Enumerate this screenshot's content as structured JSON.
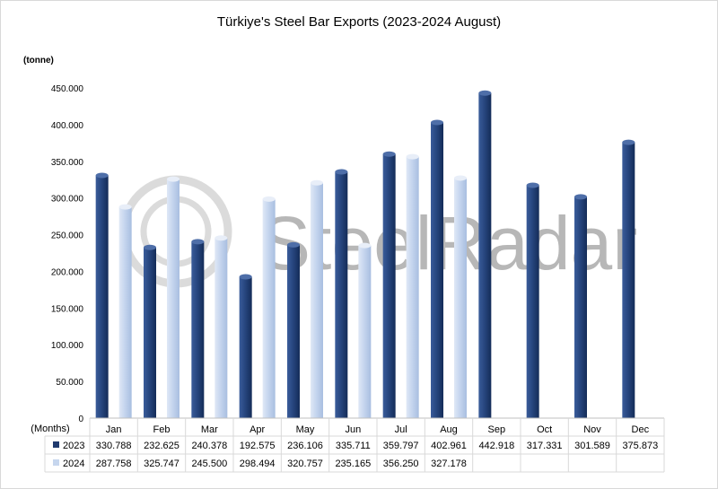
{
  "chart_data": {
    "type": "bar",
    "title": "Türkiye's Steel Bar Exports (2023-2024 August)",
    "ylabel": "(tonne)",
    "xlabel": "(Months)",
    "categories": [
      "Jan",
      "Feb",
      "Mar",
      "Apr",
      "May",
      "Jun",
      "Jul",
      "Aug",
      "Sep",
      "Oct",
      "Nov",
      "Dec"
    ],
    "ylim": [
      0,
      450000
    ],
    "yticks": [
      0,
      50000,
      100000,
      150000,
      200000,
      250000,
      300000,
      350000,
      400000,
      450000
    ],
    "ytick_labels": [
      "0",
      "50.000",
      "100.000",
      "150.000",
      "200.000",
      "250.000",
      "300.000",
      "350.000",
      "400.000",
      "450.000"
    ],
    "grid": false,
    "legend": "data-table",
    "series": [
      {
        "name": "2023",
        "color": "#1f3a6e",
        "values": [
          330788,
          232625,
          240378,
          192575,
          236106,
          335711,
          359797,
          402961,
          442918,
          317331,
          301589,
          375873
        ],
        "labels": [
          "330.788",
          "232.625",
          "240.378",
          "192.575",
          "236.106",
          "335.711",
          "359.797",
          "402.961",
          "442.918",
          "317.331",
          "301.589",
          "375.873"
        ]
      },
      {
        "name": "2024",
        "color": "#c6d6ee",
        "values": [
          287758,
          325747,
          245500,
          298494,
          320757,
          235165,
          356250,
          327178,
          null,
          null,
          null,
          null
        ],
        "labels": [
          "287.758",
          "325.747",
          "245.500",
          "298.494",
          "320.757",
          "235.165",
          "356.250",
          "327.178",
          "",
          "",
          "",
          ""
        ]
      }
    ]
  },
  "watermark": "SteelRadar"
}
